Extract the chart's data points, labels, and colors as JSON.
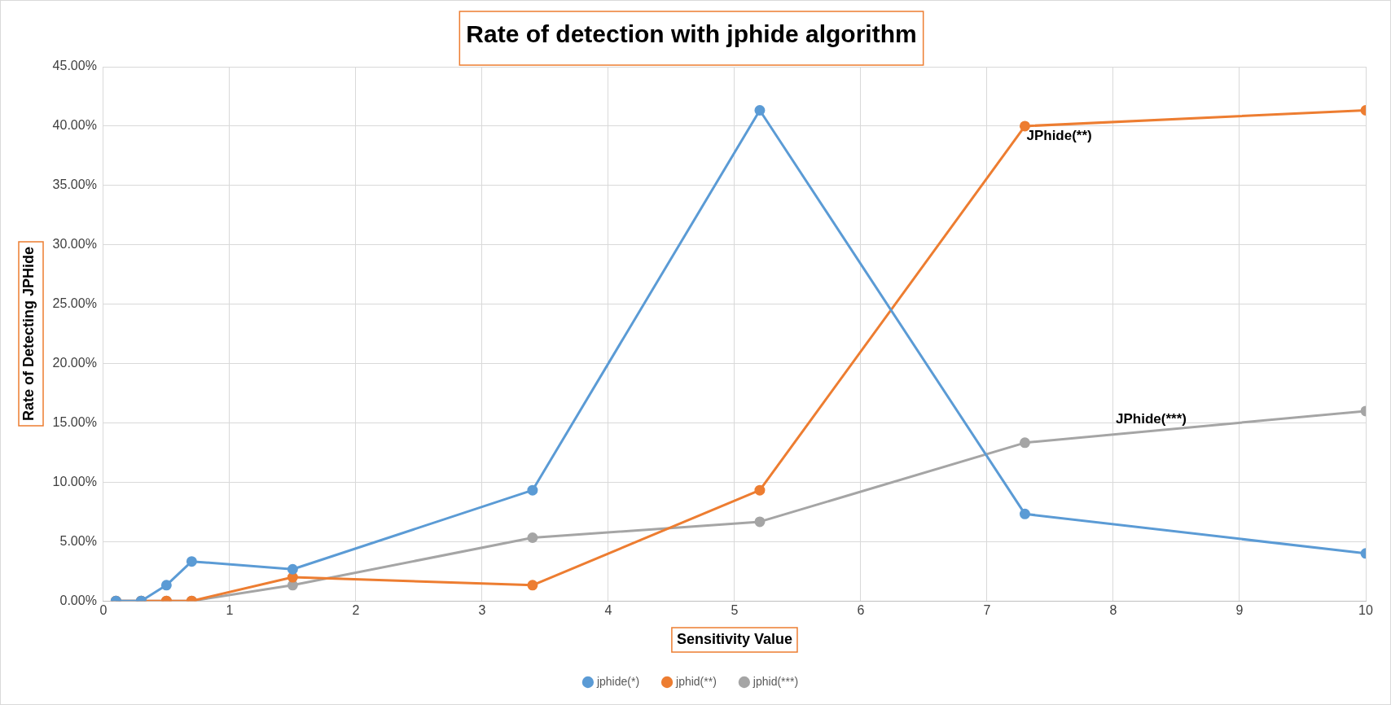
{
  "chart_data": {
    "type": "line",
    "title": "Rate of detection with jphide algorithm",
    "xlabel": "Sensitivity Value",
    "ylabel": "Rate of Detecting JPHide",
    "x": [
      0.1,
      0.3,
      0.5,
      0.7,
      1.5,
      3.4,
      5.2,
      7.3,
      10
    ],
    "series": [
      {
        "name": "jphide(*)",
        "color": "#5b9bd5",
        "values": [
          0,
          0,
          1.33,
          3.33,
          2.67,
          9.33,
          41.33,
          7.33,
          4
        ]
      },
      {
        "name": "jphid(**)",
        "color": "#ed7d31",
        "values": [
          0,
          0,
          0,
          0,
          2,
          1.33,
          9.33,
          40,
          41.33
        ]
      },
      {
        "name": "jphid(***)",
        "color": "#a5a5a5",
        "values": [
          0,
          0,
          0,
          0,
          1.33,
          5.33,
          6.67,
          13.33,
          16
        ]
      }
    ],
    "xlim": [
      0,
      10
    ],
    "xticks": [
      0,
      1,
      2,
      3,
      4,
      5,
      6,
      7,
      8,
      9,
      10
    ],
    "ylim": [
      0,
      45
    ],
    "yticks": [
      {
        "value": 0,
        "label": "0.00%"
      },
      {
        "value": 5,
        "label": "5.00%"
      },
      {
        "value": 10,
        "label": "10.00%"
      },
      {
        "value": 15,
        "label": "15.00%"
      },
      {
        "value": 20,
        "label": "20.00%"
      },
      {
        "value": 25,
        "label": "25.00%"
      },
      {
        "value": 30,
        "label": "30.00%"
      },
      {
        "value": 35,
        "label": "35.00%"
      },
      {
        "value": 40,
        "label": "40.00%"
      },
      {
        "value": 45,
        "label": "45.00%"
      }
    ],
    "annotations": [
      {
        "text": "JPhide(**)",
        "x": 7.3,
        "y": 40
      },
      {
        "text": "JPhide(***)",
        "x": 8.3,
        "y": 14.32
      }
    ],
    "grid": true,
    "legend": "bottom",
    "marker": "circle",
    "line_style": "solid"
  }
}
